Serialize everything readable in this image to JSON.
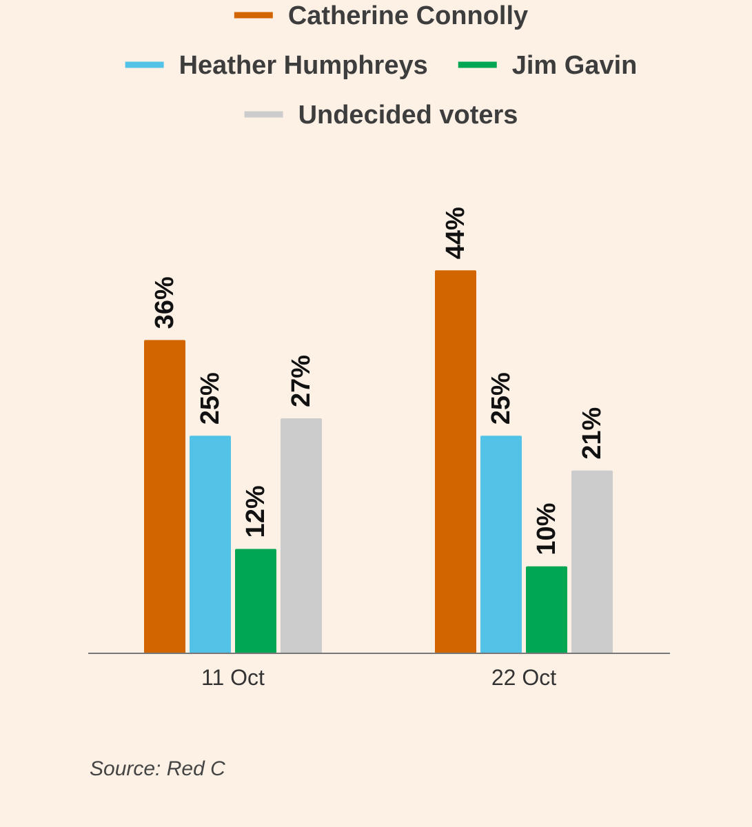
{
  "chart_data": {
    "type": "bar",
    "title": "",
    "xlabel": "",
    "ylabel": "",
    "ylim": [
      0,
      44
    ],
    "grid": false,
    "legend_position": "top-center",
    "categories": [
      "11 Oct",
      "22 Oct"
    ],
    "series": [
      {
        "name": "Catherine Connolly",
        "color": "#d36500",
        "values": [
          36,
          44
        ],
        "labels": [
          "36%",
          "44%"
        ]
      },
      {
        "name": "Heather Humphreys",
        "color": "#52c2e6",
        "values": [
          25,
          25
        ],
        "labels": [
          "25%",
          "25%"
        ]
      },
      {
        "name": "Jim Gavin",
        "color": "#00a651",
        "values": [
          12,
          10
        ],
        "labels": [
          "12%",
          "10%"
        ]
      },
      {
        "name": "Undecided voters",
        "color": "#cccccc",
        "values": [
          27,
          21
        ],
        "labels": [
          "27%",
          "21%"
        ]
      }
    ],
    "source": "Source: Red C"
  }
}
